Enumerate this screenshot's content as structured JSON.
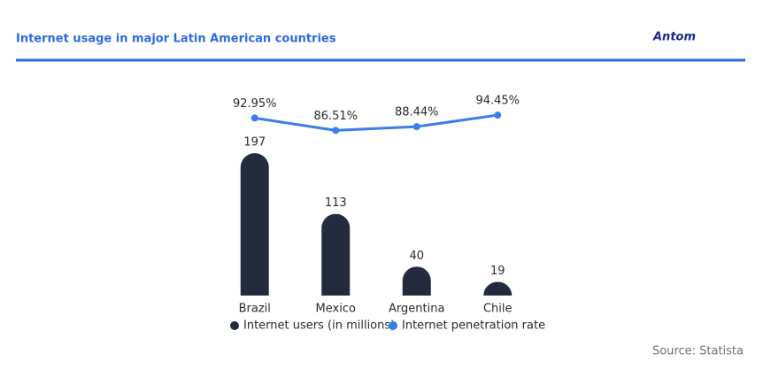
{
  "chart_data": {
    "type": "combo",
    "title": "Internet usage in major Latin American countries",
    "brand": "Antom",
    "source": "Source: Statista",
    "categories": [
      "Brazil",
      "Mexico",
      "Argentina",
      "Chile"
    ],
    "ylim": [
      0,
      240
    ],
    "y2lim": [
      60,
      100
    ],
    "series": [
      {
        "name": "Internet users (in millions)",
        "kind": "bar",
        "color": "#232b3e",
        "values": [
          197,
          113,
          40,
          19
        ]
      },
      {
        "name": "Internet penetration rate",
        "kind": "line",
        "axis": "y2",
        "color": "#3b7de9",
        "values": [
          92.95,
          86.51,
          88.44,
          94.45
        ],
        "value_labels": [
          "92.95%",
          "86.51%",
          "88.44%",
          "94.45%"
        ]
      }
    ]
  }
}
